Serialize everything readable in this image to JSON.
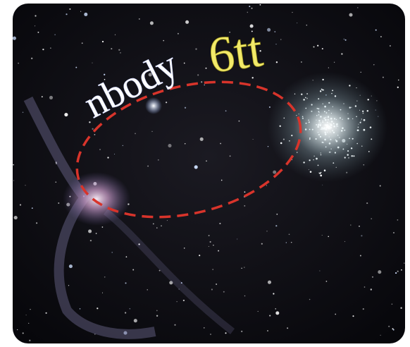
{
  "logo": {
    "name": "nbody",
    "suffix": "6tt"
  }
}
